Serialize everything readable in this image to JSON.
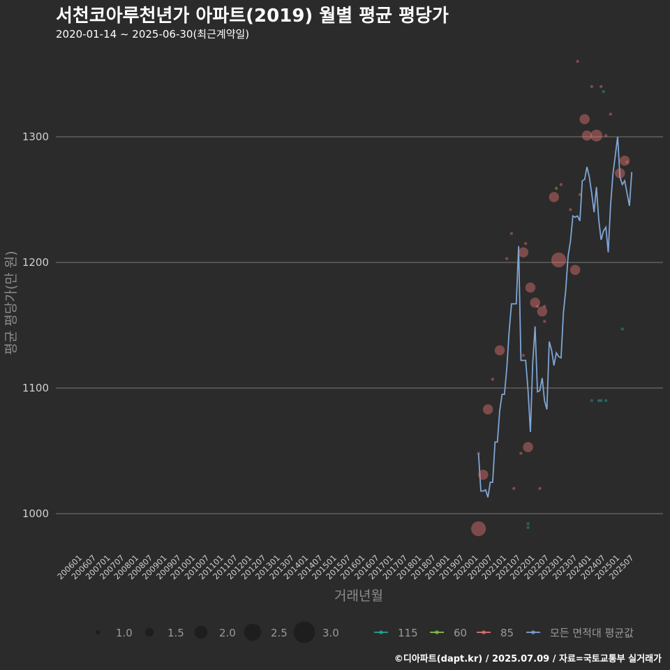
{
  "header": {
    "title": "서천코아루천년가 아파트(2019) 월별 평균 평당가",
    "subtitle": "2020-01-14 ~ 2025-06-30(최근계약일)"
  },
  "caption": "©디아파트(dapt.kr) / 2025.07.09 / 자료=국토교통부 실거래가",
  "chart_data": {
    "type": "line",
    "xlabel": "거래년월",
    "ylabel": "평균 평당가(만 원)",
    "y_ticks": [
      1000,
      1100,
      1200,
      1300
    ],
    "ylim": [
      970,
      1370
    ],
    "x_range": [
      "2006-01",
      "2025-08"
    ],
    "x_tick_labels": [
      "200601",
      "200607",
      "200701",
      "200707",
      "200801",
      "200807",
      "200901",
      "200907",
      "201001",
      "201007",
      "201101",
      "201107",
      "201201",
      "201207",
      "201301",
      "201307",
      "201401",
      "201407",
      "201501",
      "201507",
      "201601",
      "201607",
      "201701",
      "201707",
      "201801",
      "201807",
      "201901",
      "201907",
      "202001",
      "202007",
      "202101",
      "202107",
      "202201",
      "202207",
      "202301",
      "202307",
      "202401",
      "202407",
      "202501",
      "202507"
    ],
    "grid": "horizontal major only",
    "colors": {
      "115": "#26a69a",
      "60": "#8bc34a",
      "85": "#e57373",
      "all": "#7fa6d6"
    },
    "series": [
      {
        "name": "모든 면적대 평균값",
        "kind": "line",
        "x": [
          "2020-01",
          "2020-02",
          "2020-03",
          "2020-04",
          "2020-05",
          "2020-06",
          "2020-07",
          "2020-08",
          "2020-09",
          "2020-10",
          "2020-11",
          "2020-12",
          "2021-01",
          "2021-02",
          "2021-03",
          "2021-04",
          "2021-05",
          "2021-06",
          "2021-07",
          "2021-08",
          "2021-09",
          "2021-10",
          "2021-11",
          "2021-12",
          "2022-01",
          "2022-02",
          "2022-03",
          "2022-04",
          "2022-05",
          "2022-06",
          "2022-07",
          "2022-08",
          "2022-09",
          "2022-10",
          "2022-11",
          "2022-12",
          "2023-01",
          "2023-02",
          "2023-03",
          "2023-04",
          "2023-05",
          "2023-06",
          "2023-07",
          "2023-08",
          "2023-09",
          "2023-10",
          "2023-11",
          "2023-12",
          "2024-01",
          "2024-02",
          "2024-03",
          "2024-04",
          "2024-05",
          "2024-06",
          "2024-07",
          "2024-08",
          "2024-09",
          "2024-10",
          "2024-11",
          "2024-12",
          "2025-01",
          "2025-02",
          "2025-03",
          "2025-04",
          "2025-05",
          "2025-06"
        ],
        "y": [
          1048,
          1018,
          1018,
          1019,
          1013,
          1025,
          1025,
          1057,
          1057,
          1082,
          1095,
          1095,
          1116,
          1145,
          1167,
          1167,
          1167,
          1213,
          1122,
          1122,
          1122,
          1098,
          1065,
          1120,
          1149,
          1097,
          1098,
          1108,
          1090,
          1083,
          1137,
          1130,
          1118,
          1128,
          1125,
          1124,
          1160,
          1178,
          1205,
          1217,
          1237,
          1236,
          1237,
          1233,
          1265,
          1266,
          1276,
          1268,
          1255,
          1240,
          1260,
          1234,
          1218,
          1225,
          1228,
          1208,
          1245,
          1270,
          1285,
          1300,
          1268,
          1262,
          1265,
          1255,
          1245,
          1272
        ]
      },
      {
        "name": "85",
        "kind": "bubble",
        "points": [
          {
            "x": "2020-01",
            "y": 988,
            "size": 3.0
          },
          {
            "x": "2020-01",
            "y": 1048,
            "size": 1.0
          },
          {
            "x": "2020-03",
            "y": 1031,
            "size": 2.2
          },
          {
            "x": "2020-05",
            "y": 1083,
            "size": 2.2
          },
          {
            "x": "2020-07",
            "y": 1107,
            "size": 1.0
          },
          {
            "x": "2020-10",
            "y": 1130,
            "size": 2.2
          },
          {
            "x": "2021-01",
            "y": 1203,
            "size": 1.0
          },
          {
            "x": "2021-03",
            "y": 1223,
            "size": 1.0
          },
          {
            "x": "2021-04",
            "y": 1020,
            "size": 1.0
          },
          {
            "x": "2021-07",
            "y": 1048,
            "size": 1.0
          },
          {
            "x": "2021-08",
            "y": 1126,
            "size": 1.0
          },
          {
            "x": "2021-08",
            "y": 1208,
            "size": 2.2
          },
          {
            "x": "2021-09",
            "y": 1215,
            "size": 1.0
          },
          {
            "x": "2021-10",
            "y": 1053,
            "size": 2.2
          },
          {
            "x": "2021-11",
            "y": 1180,
            "size": 2.2
          },
          {
            "x": "2022-01",
            "y": 1168,
            "size": 2.2
          },
          {
            "x": "2022-02",
            "y": 1165,
            "size": 1.0
          },
          {
            "x": "2022-03",
            "y": 1020,
            "size": 1.0
          },
          {
            "x": "2022-04",
            "y": 1161,
            "size": 2.2
          },
          {
            "x": "2022-05",
            "y": 1153,
            "size": 1.0
          },
          {
            "x": "2022-05",
            "y": 1165,
            "size": 1.0
          },
          {
            "x": "2022-09",
            "y": 1252,
            "size": 2.2
          },
          {
            "x": "2022-11",
            "y": 1202,
            "size": 3.0
          },
          {
            "x": "2022-12",
            "y": 1262,
            "size": 1.0
          },
          {
            "x": "2023-04",
            "y": 1242,
            "size": 1.0
          },
          {
            "x": "2023-06",
            "y": 1194,
            "size": 2.2
          },
          {
            "x": "2023-07",
            "y": 1360,
            "size": 1.0
          },
          {
            "x": "2023-08",
            "y": 1254,
            "size": 1.0
          },
          {
            "x": "2023-10",
            "y": 1314,
            "size": 2.2
          },
          {
            "x": "2023-11",
            "y": 1301,
            "size": 2.2
          },
          {
            "x": "2024-01",
            "y": 1340,
            "size": 1.0
          },
          {
            "x": "2024-03",
            "y": 1301,
            "size": 2.5
          },
          {
            "x": "2024-05",
            "y": 1340,
            "size": 1.0
          },
          {
            "x": "2024-07",
            "y": 1301,
            "size": 1.0
          },
          {
            "x": "2024-09",
            "y": 1318,
            "size": 1.0
          },
          {
            "x": "2025-01",
            "y": 1271,
            "size": 2.2
          },
          {
            "x": "2025-03",
            "y": 1281,
            "size": 2.2
          },
          {
            "x": "2025-04",
            "y": 1280,
            "size": 1.0
          }
        ]
      },
      {
        "name": "115",
        "kind": "bubble",
        "points": [
          {
            "x": "2021-10",
            "y": 989,
            "size": 1.0
          },
          {
            "x": "2021-10",
            "y": 992,
            "size": 1.0
          },
          {
            "x": "2024-01",
            "y": 1090,
            "size": 1.0
          },
          {
            "x": "2024-04",
            "y": 1090,
            "size": 1.0
          },
          {
            "x": "2024-05",
            "y": 1090,
            "size": 1.0
          },
          {
            "x": "2024-07",
            "y": 1090,
            "size": 1.0
          },
          {
            "x": "2024-06",
            "y": 1336,
            "size": 1.0
          },
          {
            "x": "2025-02",
            "y": 1147,
            "size": 1.0
          }
        ]
      },
      {
        "name": "60",
        "kind": "bubble",
        "points": [
          {
            "x": "2022-10",
            "y": 1259,
            "size": 1.0
          }
        ]
      }
    ],
    "size_legend": [
      "1.0",
      "1.5",
      "2.0",
      "2.5",
      "3.0"
    ],
    "color_legend": [
      "115",
      "60",
      "85",
      "모든 면적대 평균값"
    ],
    "legend_position": "bottom"
  }
}
